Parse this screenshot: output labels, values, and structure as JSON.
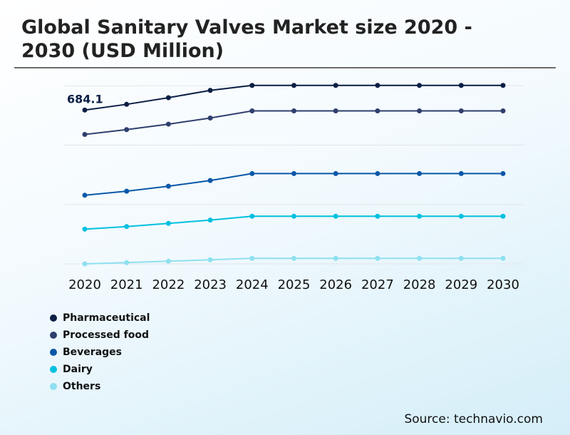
{
  "chart_data": {
    "type": "line",
    "title": "Global Sanitary Valves Market size 2020 - 2030 (USD Million)",
    "x": [
      "2020",
      "2021",
      "2022",
      "2023",
      "2024",
      "2025",
      "2026",
      "2027",
      "2028",
      "2029",
      "2030"
    ],
    "ylim": [
      0,
      792
    ],
    "grid": true,
    "legend_position": "bottom-left",
    "annotations": [
      {
        "series": "Pharmaceutical",
        "x": "2020",
        "text": "684.1"
      }
    ],
    "series": [
      {
        "name": "Pharmaceutical",
        "color": "#0b1f45",
        "values": [
          684.1,
          709.5,
          739.0,
          771.6,
          793.8,
          793.8,
          793.8,
          793.8,
          793.8,
          793.8,
          793.8
        ]
      },
      {
        "name": "Processed food",
        "color": "#2f3f6e",
        "values": [
          575.7,
          597.0,
          621.4,
          648.7,
          680.4,
          680.4,
          680.4,
          680.4,
          680.4,
          680.4,
          680.4
        ]
      },
      {
        "name": "Beverages",
        "color": "#0a58a8",
        "values": [
          305.1,
          323.2,
          345.4,
          370.8,
          401.5,
          401.5,
          401.5,
          401.5,
          401.5,
          401.5,
          401.5
        ]
      },
      {
        "name": "Dairy",
        "color": "#00c0e0",
        "values": [
          154.4,
          165.9,
          179.9,
          194.5,
          211.6,
          211.6,
          211.6,
          211.6,
          211.6,
          211.6,
          211.6
        ]
      },
      {
        "name": "Others",
        "color": "#8ee0f0",
        "values": [
          0,
          5.4,
          11.7,
          18.1,
          24.4,
          24.4,
          24.4,
          24.4,
          24.4,
          24.4,
          24.4
        ]
      }
    ]
  },
  "source": "Source: technavio.com"
}
